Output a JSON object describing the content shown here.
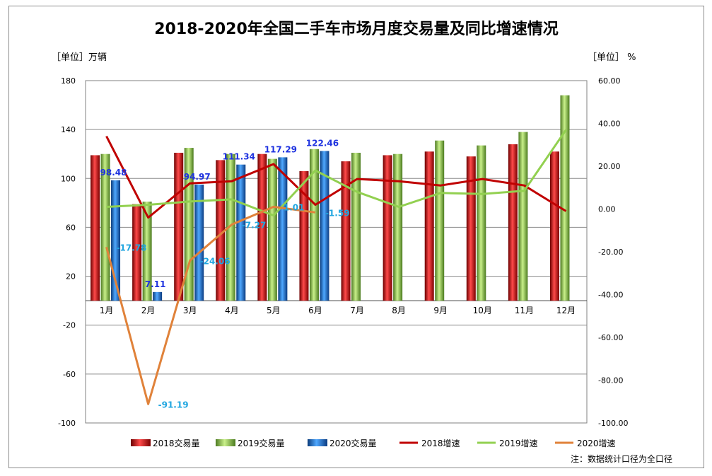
{
  "chart_data": {
    "type": "bar",
    "title": "2018-2020年全国二手车市场月度交易量及同比增速情况",
    "left_unit": "［单位］万辆",
    "right_unit": "［单位］ %",
    "note": "注：数据统计口径为全口径",
    "categories": [
      "1月",
      "2月",
      "3月",
      "4月",
      "5月",
      "6月",
      "7月",
      "8月",
      "9月",
      "10月",
      "11月",
      "12月"
    ],
    "left_axis": {
      "ylim": [
        -100,
        180
      ],
      "ticks": [
        -100,
        -60,
        -20,
        20,
        60,
        100,
        140,
        180
      ]
    },
    "right_axis": {
      "ylim": [
        -100,
        60
      ],
      "ticks": [
        "-100.00",
        "-80.00",
        "-60.00",
        "-40.00",
        "-20.00",
        "0.00",
        "20.00",
        "40.00",
        "60.00"
      ]
    },
    "bar_series": [
      {
        "name": "2018交易量",
        "color": "#c00000",
        "values": [
          119,
          79,
          121,
          115,
          120,
          106,
          114,
          119,
          122,
          118,
          128,
          122
        ]
      },
      {
        "name": "2019交易量",
        "color": "#7ab648",
        "values": [
          120,
          81,
          125,
          120,
          116,
          124,
          121,
          120,
          131,
          127,
          138,
          168
        ]
      },
      {
        "name": "2020交易量",
        "color": "#1f6fc0",
        "values": [
          98.48,
          7.11,
          94.97,
          111.34,
          117.29,
          122.46,
          null,
          null,
          null,
          null,
          null,
          null
        ]
      }
    ],
    "line_series": [
      {
        "name": "2018增速",
        "color": "#c00000",
        "values": [
          34,
          -4,
          12,
          13,
          21,
          2,
          14,
          13,
          11,
          14,
          11,
          -1
        ]
      },
      {
        "name": "2019增速",
        "color": "#92d050",
        "values": [
          1,
          2,
          3.5,
          4.5,
          -3,
          18,
          8,
          1,
          7.5,
          7,
          8.5,
          37
        ]
      },
      {
        "name": "2020增速",
        "color": "#e0823a",
        "values": [
          -17.78,
          -91.19,
          -24.06,
          -7.27,
          1.01,
          -1.59,
          null,
          null,
          null,
          null,
          null,
          null
        ]
      }
    ],
    "data_labels": {
      "volume_2020": [
        "98.48",
        "7.11",
        "94.97",
        "111.34",
        "117.29",
        "122.46"
      ],
      "rate_2020": [
        "-17.78",
        "-91.19",
        "-24.06",
        "-7.27",
        "1.01",
        "-1.59"
      ]
    },
    "legend": [
      "2018交易量",
      "2019交易量",
      "2020交易量",
      "2018增速",
      "2019增速",
      "2020增速"
    ],
    "legend_position": "bottom",
    "grid": true
  }
}
